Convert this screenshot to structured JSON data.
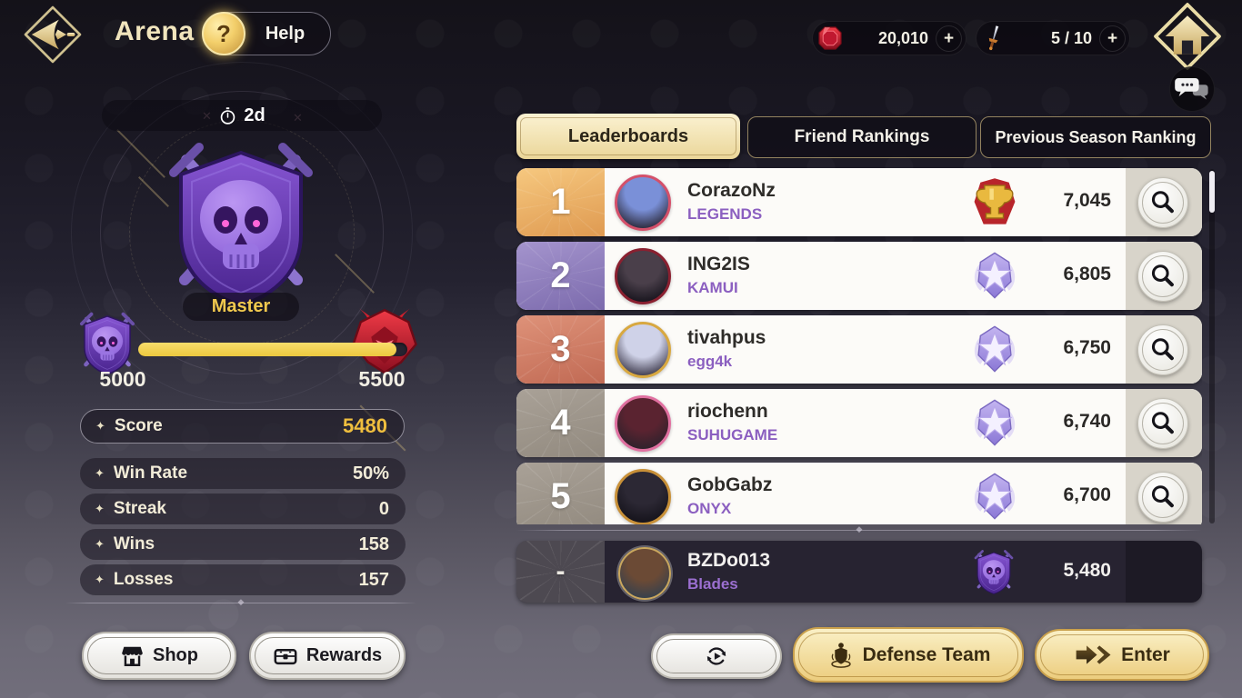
{
  "header": {
    "title": "Arena",
    "help_icon": "?",
    "help_label": "Help",
    "currencies": [
      {
        "name": "gems",
        "icon": "gem-icon",
        "value": "20,010",
        "plus": "+"
      },
      {
        "name": "arena-tickets",
        "icon": "dagger-icon",
        "value": "5 / 10",
        "plus": "+"
      }
    ]
  },
  "season": {
    "timer": "2d"
  },
  "rank_panel": {
    "bullet": "✦",
    "rank_label": "Master",
    "range_min": "5000",
    "range_max": "5500",
    "progress_pct": 96,
    "score": {
      "label": "Score",
      "value": "5480"
    },
    "stats": [
      {
        "label": "Win Rate",
        "value": "50%"
      },
      {
        "label": "Streak",
        "value": "0"
      },
      {
        "label": "Wins",
        "value": "158"
      },
      {
        "label": "Losses",
        "value": "157"
      }
    ]
  },
  "left_buttons": [
    {
      "label": "Shop"
    },
    {
      "label": "Rewards"
    }
  ],
  "tabs": [
    {
      "label": "Leaderboards",
      "active": true
    },
    {
      "label": "Friend Rankings",
      "active": false
    },
    {
      "label": "Previous Season Ranking",
      "active": false
    }
  ],
  "leaderboard": {
    "rows": [
      {
        "rank": "1",
        "rank_style": "gold",
        "name": "CorazoNz",
        "guild": "LEGENDS",
        "points": "7,045",
        "badge_icon": "sym-trophy",
        "avatar": {
          "frame": "#d4506a",
          "top": "#7a90d8",
          "bottom": "#2a2736"
        }
      },
      {
        "rank": "2",
        "rank_style": "purple",
        "name": "ING2IS",
        "guild": "KAMUI",
        "points": "6,805",
        "badge_icon": "sym-starbadge",
        "avatar": {
          "frame": "#8a2030",
          "top": "#4a3f4a",
          "bottom": "#16131c"
        }
      },
      {
        "rank": "3",
        "rank_style": "red",
        "name": "tivahpus",
        "guild": "egg4k",
        "points": "6,750",
        "badge_icon": "sym-starbadge",
        "avatar": {
          "frame": "#d8a840",
          "top": "#cfd2e8",
          "bottom": "#3a3648"
        }
      },
      {
        "rank": "4",
        "rank_style": "gray",
        "name": "riochenn",
        "guild": "SUHUGAME",
        "points": "6,740",
        "badge_icon": "sym-starbadge",
        "avatar": {
          "frame": "#e070a0",
          "top": "#5a2330",
          "bottom": "#2c222c"
        }
      },
      {
        "rank": "5",
        "rank_style": "gray",
        "name": "GobGabz",
        "guild": "ONYX",
        "points": "6,700",
        "badge_icon": "sym-starbadge",
        "avatar": {
          "frame": "#c89038",
          "top": "#2c2834",
          "bottom": "#14121a"
        }
      }
    ],
    "player_row": {
      "rank": "-",
      "name": "BZDo013",
      "guild": "Blades",
      "points": "5,480",
      "badge_icon": "sym-skullshield",
      "avatar": {
        "frame": "#c9a75e",
        "top": "#6b4a35",
        "bottom": "#33404e"
      }
    }
  },
  "footer": {
    "defense_label": "Defense Team",
    "enter_label": "Enter"
  },
  "colors": {
    "accent_gold": "#f0c43c",
    "tab_active": "#f3e3b2",
    "guild_purple": "#8b5fc0",
    "progress_yellow": "#f2cf4d",
    "gem_red": "#d42030",
    "emblem_purple": "#8050c8"
  }
}
